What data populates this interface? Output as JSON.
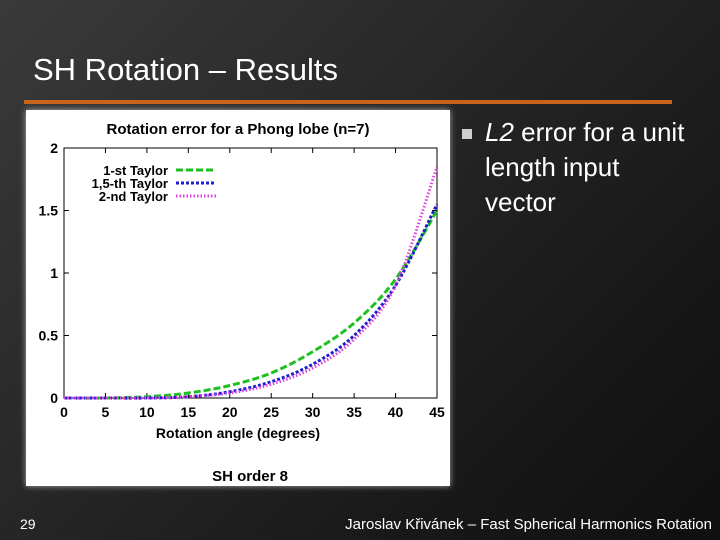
{
  "slide": {
    "title": "SH Rotation – Results",
    "bullet_em": "L2",
    "bullet_rest": " error for a unit length input vector",
    "slide_number": "29",
    "footer": "Jaroslav Křivánek – Fast Spherical Harmonics Rotation"
  },
  "colors": {
    "accent_rule": "#c8631a",
    "series_1": "#1ec01e",
    "series_2": "#1f1fd0",
    "series_3": "#e040e0"
  },
  "chart_data": {
    "type": "line",
    "title": "Rotation error for a Phong lobe (n=7)",
    "xlabel": "Rotation angle (degrees)",
    "ylabel": "",
    "caption": "SH order 8",
    "xlim": [
      0,
      45
    ],
    "ylim": [
      0,
      2
    ],
    "xticks": [
      0,
      5,
      10,
      15,
      20,
      25,
      30,
      35,
      40,
      45
    ],
    "yticks": [
      0,
      0.5,
      1,
      1.5,
      2
    ],
    "xtick_labels": [
      "0",
      "5",
      "10",
      "15",
      "20",
      "25",
      "30",
      "35",
      "40",
      "45"
    ],
    "ytick_labels": [
      "0",
      "0.5",
      "1",
      "1.5",
      "2"
    ],
    "legend_position": "top-left",
    "grid": false,
    "x": [
      0,
      5,
      10,
      15,
      20,
      25,
      30,
      35,
      40,
      45
    ],
    "series": [
      {
        "name": "1-st Taylor",
        "values": [
          0,
          0.0,
          0.01,
          0.04,
          0.1,
          0.2,
          0.37,
          0.6,
          0.95,
          1.5
        ]
      },
      {
        "name": "1,5-th Taylor",
        "values": [
          0,
          0.0,
          0.0,
          0.01,
          0.05,
          0.13,
          0.27,
          0.5,
          0.9,
          1.55
        ]
      },
      {
        "name": "2-nd Taylor",
        "values": [
          0,
          0.0,
          0.0,
          0.01,
          0.04,
          0.11,
          0.24,
          0.47,
          0.9,
          1.85
        ]
      }
    ]
  }
}
